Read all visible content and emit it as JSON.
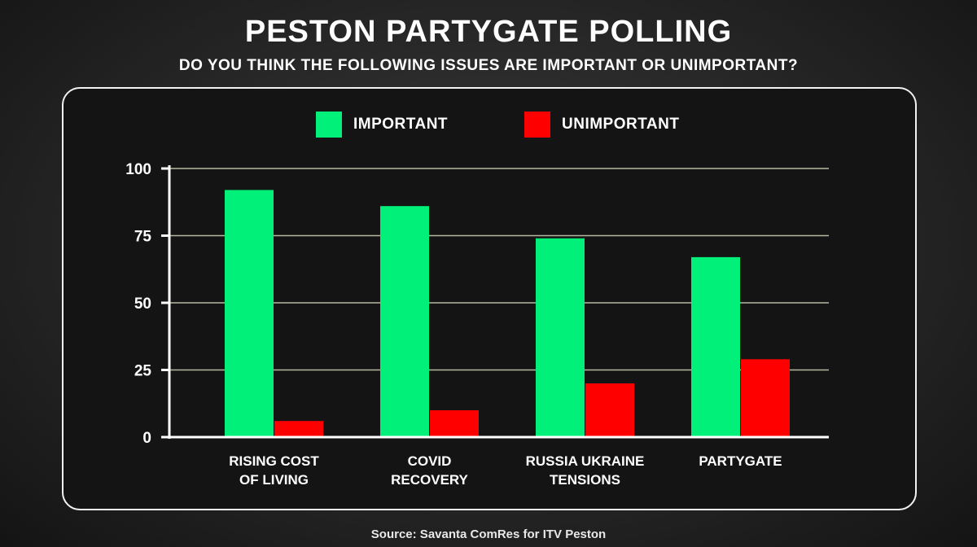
{
  "chart_data": {
    "type": "bar",
    "title": "PESTON PARTYGATE POLLING",
    "subtitle": "DO YOU THINK THE FOLLOWING ISSUES ARE IMPORTANT OR UNIMPORTANT?",
    "categories": [
      [
        "RISING COST",
        "OF LIVING"
      ],
      [
        "COVID",
        "RECOVERY"
      ],
      [
        "RUSSIA UKRAINE",
        "TENSIONS"
      ],
      [
        "PARTYGATE"
      ]
    ],
    "series": [
      {
        "name": "IMPORTANT",
        "color": "#00f07a",
        "values": [
          92,
          86,
          74,
          67
        ]
      },
      {
        "name": "UNIMPORTANT",
        "color": "#ff0000",
        "values": [
          6,
          10,
          20,
          29
        ]
      }
    ],
    "ylim": [
      0,
      100
    ],
    "yticks": [
      0,
      25,
      50,
      75,
      100
    ],
    "grid": true,
    "legend_position": "top-center",
    "source": "Source: Savanta ComRes for ITV Peston"
  }
}
